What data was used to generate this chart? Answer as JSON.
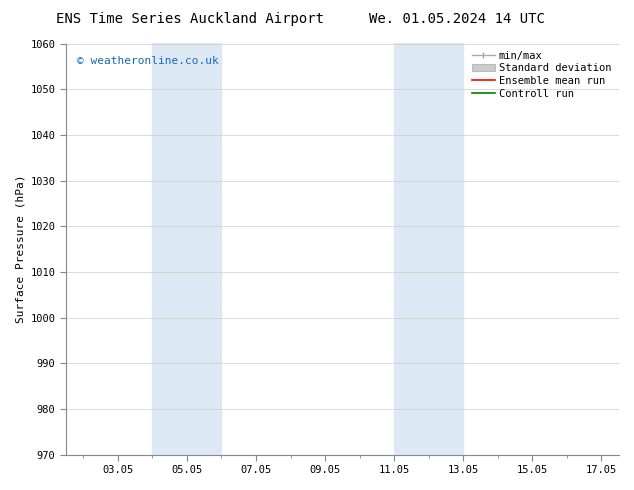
{
  "title_left": "ENS Time Series Auckland Airport",
  "title_right": "We. 01.05.2024 14 UTC",
  "ylabel": "Surface Pressure (hPa)",
  "ylim": [
    970,
    1060
  ],
  "yticks": [
    970,
    980,
    990,
    1000,
    1010,
    1020,
    1030,
    1040,
    1050,
    1060
  ],
  "xtick_labels": [
    "03.05",
    "05.05",
    "07.05",
    "09.05",
    "11.05",
    "13.05",
    "15.05",
    "17.05"
  ],
  "xtick_days": [
    3,
    5,
    7,
    9,
    11,
    13,
    15,
    17
  ],
  "xlim": [
    1.5,
    17.5
  ],
  "shaded_regions": [
    {
      "x0_day": 4.0,
      "x1_day": 6.0
    },
    {
      "x0_day": 11.0,
      "x1_day": 13.0
    }
  ],
  "shade_color": "#dce9f5",
  "watermark_text": "© weatheronline.co.uk",
  "watermark_color": "#1a6ab5",
  "bg_color": "#ffffff",
  "grid_color": "#cccccc",
  "title_fontsize": 10,
  "axis_label_fontsize": 8,
  "tick_fontsize": 7.5,
  "legend_fontsize": 7.5
}
